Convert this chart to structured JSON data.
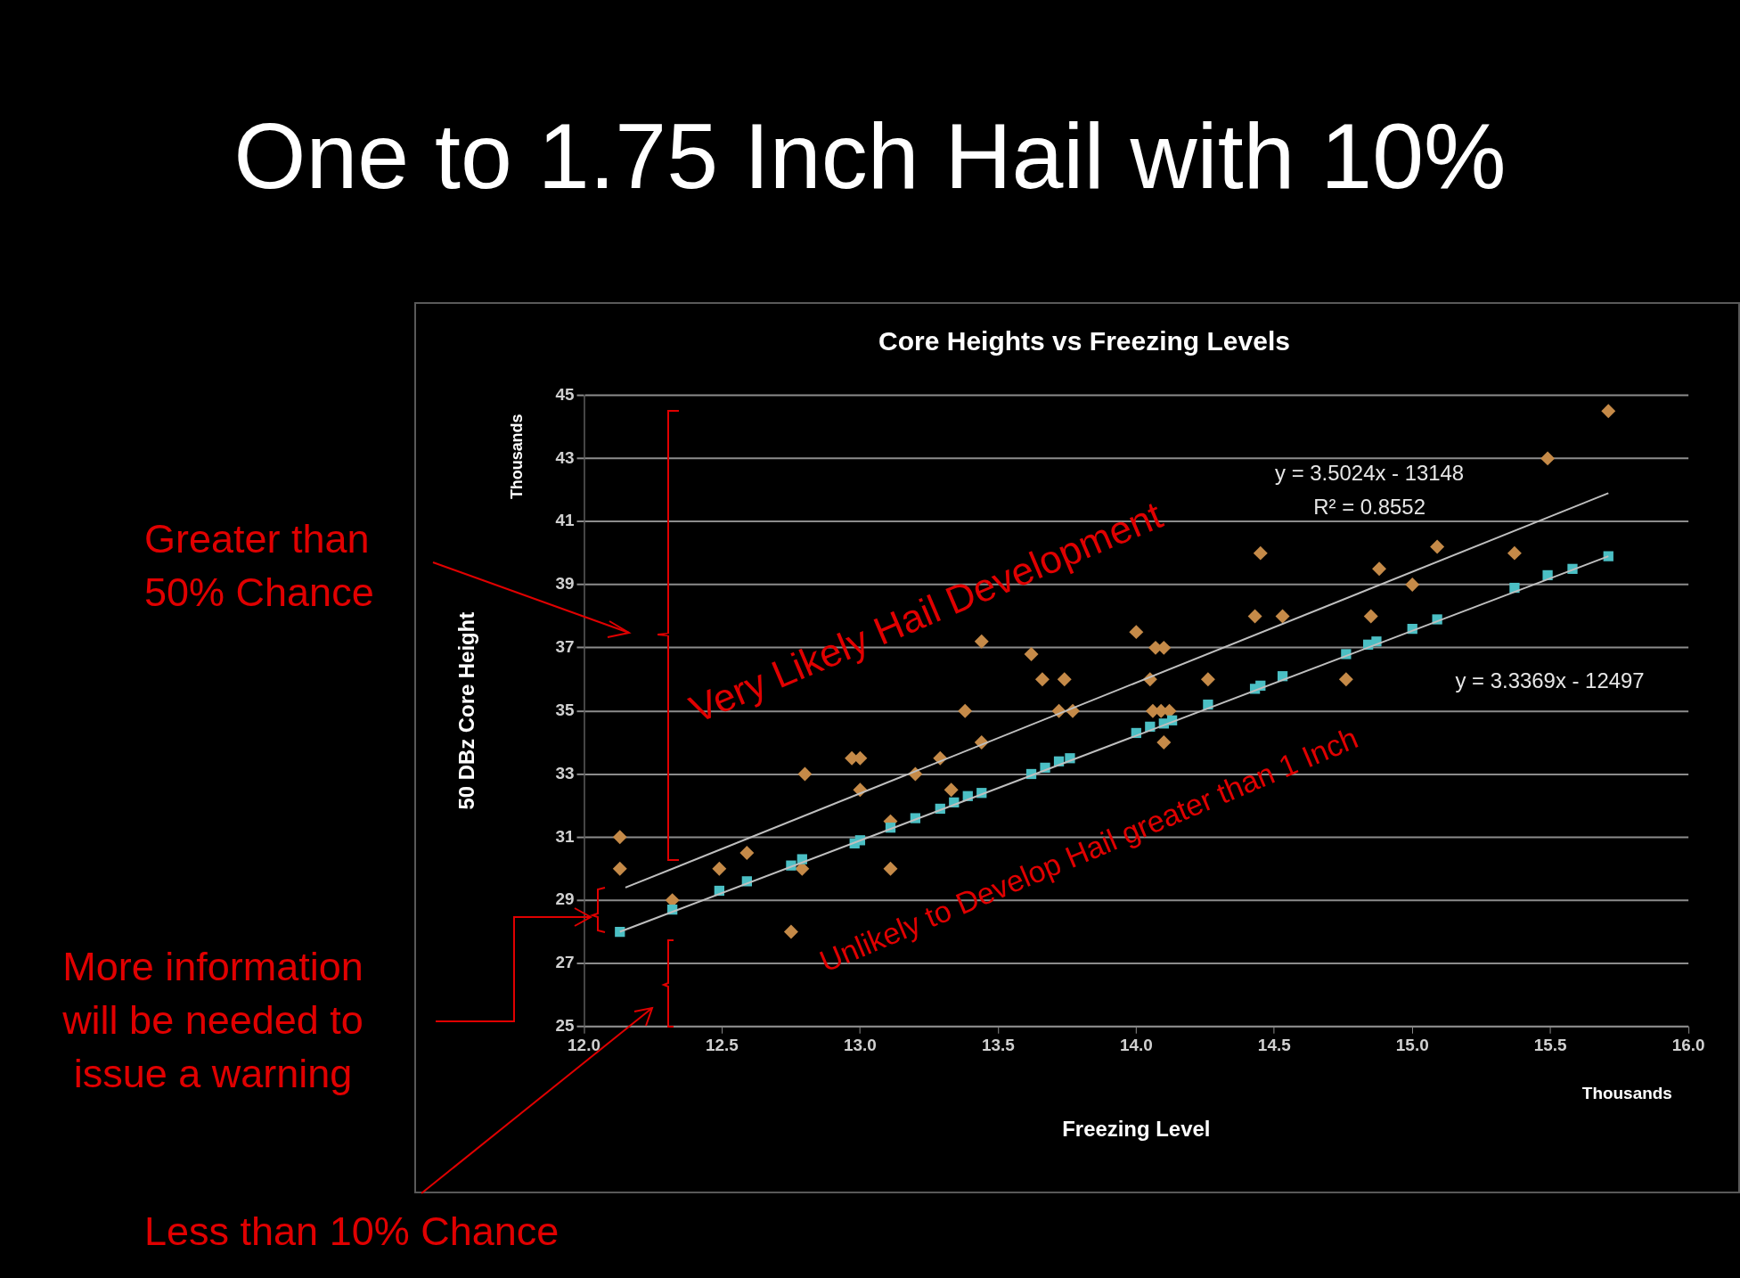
{
  "chart_data": {
    "type": "scatter",
    "title": "One to 1.75 Inch Hail with 10%",
    "subtitle": "Core Heights vs Freezing Levels",
    "xlabel": "Freezing Level",
    "ylabel": "50 DBz Core Height",
    "xlim": [
      12,
      16
    ],
    "ylim": [
      25,
      45
    ],
    "xticks": [
      {
        "value": 12,
        "label": "12.0"
      },
      {
        "value": 12.5,
        "label": "12.5"
      },
      {
        "value": 13,
        "label": "13.0"
      },
      {
        "value": 13.5,
        "label": "13.5"
      },
      {
        "value": 14,
        "label": "14.0"
      },
      {
        "value": 14.5,
        "label": "14.5"
      },
      {
        "value": 15,
        "label": "15.0"
      },
      {
        "value": 15.5,
        "label": "15.5"
      },
      {
        "value": 16,
        "label": "16.0"
      }
    ],
    "yticks": [
      25,
      27,
      29,
      31,
      33,
      35,
      37,
      39,
      41,
      43,
      45
    ],
    "grid": "y",
    "series": [
      {
        "type": "scatter",
        "marker": "diamond",
        "color": "#c58a48",
        "x": [
          12.13,
          12.13,
          12.32,
          12.49,
          12.59,
          12.75,
          12.8,
          12.79,
          12.97,
          13.0,
          13.0,
          13.11,
          13.11,
          13.2,
          13.29,
          13.33,
          13.38,
          13.44,
          13.44,
          13.62,
          13.66,
          13.74,
          13.72,
          13.77,
          14.0,
          14.07,
          14.1,
          14.05,
          14.06,
          14.09,
          14.12,
          14.1,
          14.26,
          14.43,
          14.45,
          14.53,
          14.76,
          14.85,
          14.88,
          15.0,
          15.09,
          15.37,
          15.49,
          15.71
        ],
        "values": [
          31.0,
          30.0,
          29.0,
          30.0,
          30.5,
          28.0,
          33.0,
          30.0,
          33.5,
          33.5,
          32.5,
          31.5,
          30.0,
          33.0,
          33.5,
          32.5,
          35.0,
          37.2,
          34.0,
          36.8,
          36.0,
          36.0,
          35.0,
          35.0,
          37.5,
          37.0,
          37.0,
          36.0,
          35.0,
          35.0,
          35.0,
          34.0,
          36.0,
          38.0,
          40.0,
          38.0,
          36.0,
          38.0,
          39.5,
          39.0,
          40.2,
          40.0,
          43.0,
          44.5
        ]
      },
      {
        "type": "scatter",
        "marker": "square",
        "color": "#4bbfc4",
        "x": [
          12.13,
          12.32,
          12.49,
          12.59,
          12.75,
          12.79,
          12.98,
          13.0,
          13.11,
          13.2,
          13.29,
          13.34,
          13.39,
          13.44,
          13.62,
          13.67,
          13.72,
          13.76,
          14.0,
          14.05,
          14.1,
          14.13,
          14.26,
          14.43,
          14.45,
          14.53,
          14.76,
          14.84,
          14.87,
          15.0,
          15.09,
          15.37,
          15.49,
          15.58,
          15.71
        ],
        "values": [
          28.0,
          28.7,
          29.3,
          29.6,
          30.1,
          30.3,
          30.8,
          30.9,
          31.3,
          31.6,
          31.9,
          32.1,
          32.3,
          32.4,
          33.0,
          33.2,
          33.4,
          33.5,
          34.3,
          34.5,
          34.6,
          34.7,
          35.2,
          35.7,
          35.8,
          36.1,
          36.8,
          37.1,
          37.2,
          37.6,
          37.9,
          38.9,
          39.3,
          39.5,
          39.9
        ]
      },
      {
        "type": "line",
        "marker": "none",
        "color": "#bfbfbf",
        "x": [
          12.15,
          15.71
        ],
        "values": [
          29.4,
          41.9
        ]
      },
      {
        "type": "line",
        "marker": "none",
        "color": "#bfbfbf",
        "x": [
          12.13,
          15.71
        ],
        "values": [
          28.0,
          39.9
        ]
      }
    ],
    "annotations": [
      "Thousands",
      "Thousands",
      "y = 3.5024x - 13148",
      "R² = 0.8552",
      "y = 3.3369x - 12497",
      "Very Likely Hail Development",
      "Unlikely to Develop Hail greater than 1 Inch",
      "Greater than 50% Chance",
      "More information will be needed to issue a warning",
      "Less than 10% Chance"
    ]
  }
}
